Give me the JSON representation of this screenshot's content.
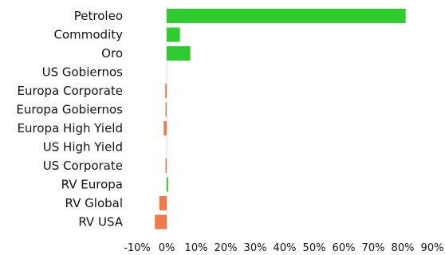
{
  "chart_data": {
    "type": "bar",
    "orientation": "horizontal",
    "categories": [
      "Petroleo",
      "Commodity",
      "Oro",
      "US Gobiernos",
      "Europa Corporate",
      "Europa Gobiernos",
      "Europa High Yield",
      "US High Yield",
      "US Corporate",
      "RV Europa",
      "RV Global",
      "RV USA"
    ],
    "values": [
      81.0,
      4.5,
      8.0,
      0.0,
      -0.5,
      -0.2,
      -1.0,
      0.0,
      -0.2,
      0.5,
      -2.5,
      -4.0
    ],
    "xlim": [
      -10,
      90
    ],
    "xticks": [
      -10,
      0,
      10,
      20,
      30,
      40,
      50,
      60,
      70,
      80,
      90
    ],
    "xtick_labels": [
      "-10%",
      "0%",
      "10%",
      "20%",
      "30%",
      "40%",
      "50%",
      "60%",
      "70%",
      "80%",
      "90%"
    ],
    "title": "",
    "xlabel": "",
    "ylabel": "",
    "grid": false,
    "legend": "none",
    "colors": {
      "positive": "#2ecc2e",
      "negative": "#f07a45",
      "zero_line": "#d9d9d9"
    }
  }
}
